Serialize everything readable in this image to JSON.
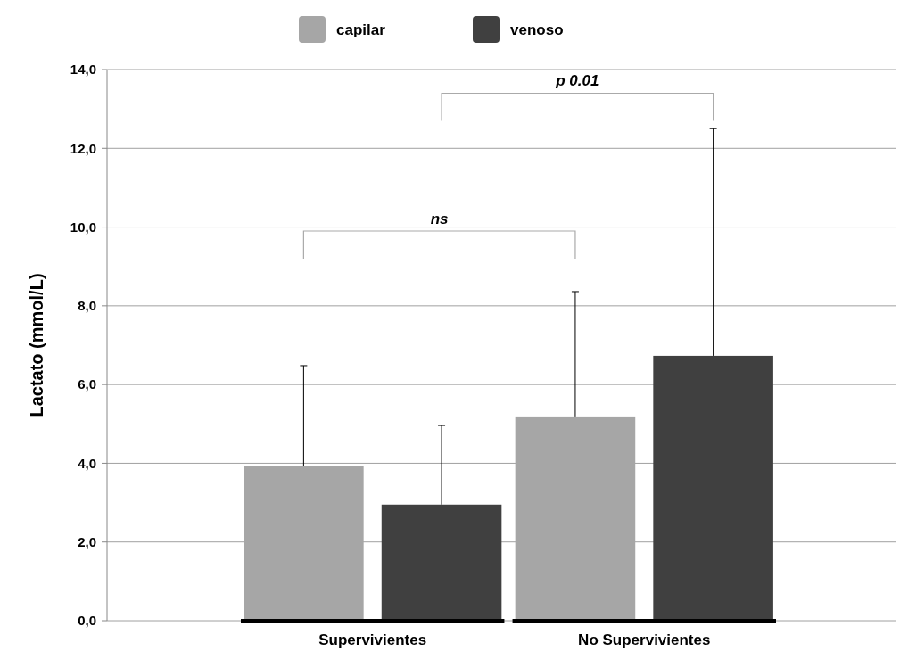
{
  "chart_data": {
    "type": "bar",
    "ylabel": "Lactato (mmol/L)",
    "categories": [
      "Supervivientes",
      "No Supervivientes"
    ],
    "series": [
      {
        "name": "capilar",
        "color": "#a6a6a6",
        "values": [
          3.92,
          5.19
        ],
        "errors": [
          [
            3.92,
            6.48
          ],
          [
            5.19,
            8.36
          ]
        ]
      },
      {
        "name": "venoso",
        "color": "#404040",
        "values": [
          2.95,
          6.73
        ],
        "errors": [
          [
            2.95,
            4.96
          ],
          [
            6.73,
            12.5
          ]
        ]
      }
    ],
    "ylim": [
      0,
      14
    ],
    "yticks": [
      {
        "value": 0,
        "label": "0,0"
      },
      {
        "value": 2,
        "label": "2,0"
      },
      {
        "value": 4,
        "label": "4,0"
      },
      {
        "value": 6,
        "label": "6,0"
      },
      {
        "value": 8,
        "label": "8,0"
      },
      {
        "value": 10,
        "label": "10,0"
      },
      {
        "value": 12,
        "label": "12,0"
      },
      {
        "value": 14,
        "label": "14,0"
      }
    ],
    "grid": "y",
    "legend": "top",
    "annotations": [
      "ns",
      "p 0.01"
    ]
  }
}
